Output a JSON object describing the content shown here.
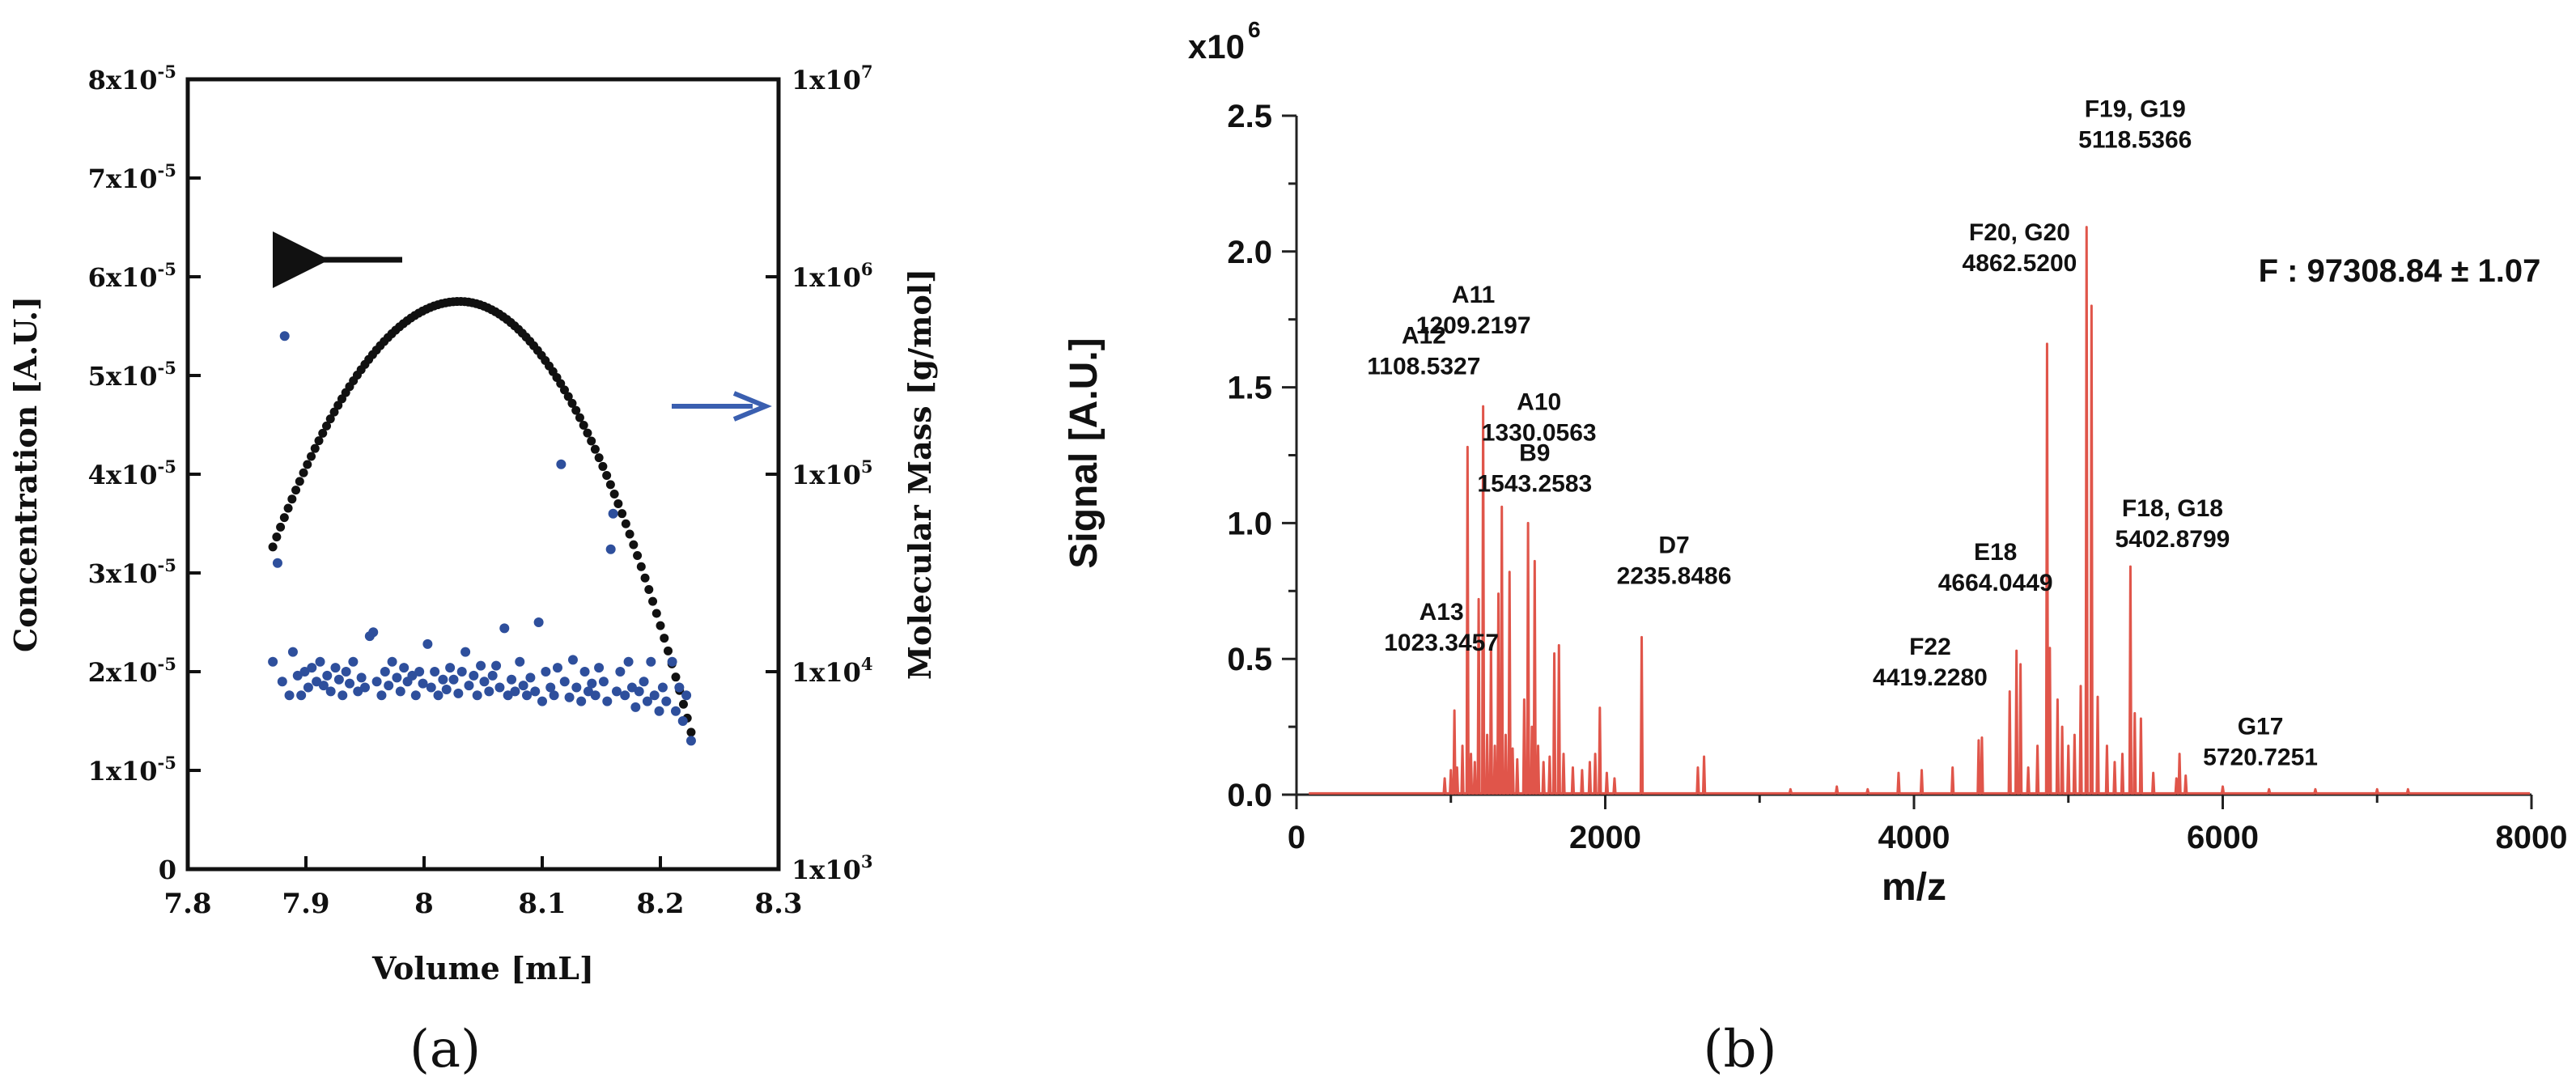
{
  "chart_data": [
    {
      "panel": "(a)",
      "type": "scatter",
      "xlabel": "Volume [mL]",
      "ylabel": "Concentration [A.U.]",
      "y2label": "Molecular Mass [g/mol]",
      "xlim": [
        7.8,
        8.3
      ],
      "ylim": [
        0,
        8e-05
      ],
      "y2lim_log10": [
        3,
        7
      ],
      "x_ticks": [
        "7.8",
        "7.9",
        "8",
        "8.1",
        "8.2",
        "8.3"
      ],
      "y_ticks": [
        "0",
        "1x10-5",
        "2x10-5",
        "3x10-5",
        "4x10-5",
        "5x10-5",
        "6x10-5",
        "7x10-5",
        "8x10-5"
      ],
      "y2_ticks": [
        "1x103",
        "1x104",
        "1x105",
        "1x106",
        "1x107"
      ],
      "colors": {
        "concentration": "#111111",
        "mass": "#2e4f9c",
        "arrow_blue": "#3a5fb0"
      },
      "concentration_series": {
        "name": "Concentration",
        "x_start": 7.872,
        "x_end": 8.226,
        "n_points": 110,
        "peak_x": 8.03,
        "peak_y": 5.75e-05,
        "left_curvature": 0.000996,
        "right_curvature": 0.001136
      },
      "mass_series": {
        "name": "Molecular Mass",
        "points": [
          [
            7.872,
            4.05
          ],
          [
            7.876,
            4.55
          ],
          [
            7.88,
            3.95
          ],
          [
            7.882,
            5.7
          ],
          [
            7.886,
            3.88
          ],
          [
            7.889,
            4.1
          ],
          [
            7.893,
            3.98
          ],
          [
            7.896,
            3.88
          ],
          [
            7.899,
            4.0
          ],
          [
            7.902,
            3.92
          ],
          [
            7.905,
            4.02
          ],
          [
            7.909,
            3.95
          ],
          [
            7.912,
            4.05
          ],
          [
            7.915,
            3.93
          ],
          [
            7.918,
            3.98
          ],
          [
            7.921,
            3.9
          ],
          [
            7.925,
            4.02
          ],
          [
            7.928,
            3.96
          ],
          [
            7.931,
            3.88
          ],
          [
            7.934,
            4.0
          ],
          [
            7.937,
            3.94
          ],
          [
            7.94,
            4.05
          ],
          [
            7.944,
            3.9
          ],
          [
            7.947,
            3.97
          ],
          [
            7.95,
            3.92
          ],
          [
            7.954,
            4.18
          ],
          [
            7.957,
            4.2
          ],
          [
            7.96,
            3.95
          ],
          [
            7.964,
            3.88
          ],
          [
            7.967,
            4.0
          ],
          [
            7.97,
            3.93
          ],
          [
            7.973,
            4.05
          ],
          [
            7.977,
            3.97
          ],
          [
            7.98,
            3.9
          ],
          [
            7.983,
            4.02
          ],
          [
            7.986,
            3.95
          ],
          [
            7.99,
            3.98
          ],
          [
            7.993,
            3.88
          ],
          [
            7.996,
            4.0
          ],
          [
            7.999,
            3.94
          ],
          [
            8.003,
            4.14
          ],
          [
            8.006,
            3.92
          ],
          [
            8.009,
            4.0
          ],
          [
            8.012,
            3.88
          ],
          [
            8.016,
            3.96
          ],
          [
            8.019,
            3.91
          ],
          [
            8.022,
            4.02
          ],
          [
            8.025,
            3.96
          ],
          [
            8.029,
            3.89
          ],
          [
            8.032,
            4.0
          ],
          [
            8.035,
            4.1
          ],
          [
            8.038,
            3.93
          ],
          [
            8.042,
            3.98
          ],
          [
            8.045,
            3.88
          ],
          [
            8.048,
            4.03
          ],
          [
            8.051,
            3.95
          ],
          [
            8.055,
            3.9
          ],
          [
            8.058,
            3.98
          ],
          [
            8.061,
            4.03
          ],
          [
            8.064,
            3.92
          ],
          [
            8.068,
            4.22
          ],
          [
            8.071,
            3.88
          ],
          [
            8.074,
            3.96
          ],
          [
            8.077,
            3.9
          ],
          [
            8.081,
            4.05
          ],
          [
            8.084,
            3.93
          ],
          [
            8.087,
            3.88
          ],
          [
            8.09,
            3.97
          ],
          [
            8.094,
            3.9
          ],
          [
            8.097,
            4.25
          ],
          [
            8.1,
            3.85
          ],
          [
            8.103,
            4.0
          ],
          [
            8.107,
            3.92
          ],
          [
            8.11,
            3.88
          ],
          [
            8.113,
            4.02
          ],
          [
            8.116,
            5.05
          ],
          [
            8.119,
            3.95
          ],
          [
            8.123,
            3.87
          ],
          [
            8.126,
            4.06
          ],
          [
            8.129,
            3.92
          ],
          [
            8.133,
            3.85
          ],
          [
            8.136,
            4.0
          ],
          [
            8.139,
            3.9
          ],
          [
            8.142,
            3.94
          ],
          [
            8.145,
            3.88
          ],
          [
            8.148,
            4.02
          ],
          [
            8.152,
            3.95
          ],
          [
            8.155,
            3.85
          ],
          [
            8.158,
            4.62
          ],
          [
            8.16,
            4.8
          ],
          [
            8.163,
            3.9
          ],
          [
            8.166,
            4.0
          ],
          [
            8.17,
            3.88
          ],
          [
            8.173,
            4.05
          ],
          [
            8.176,
            3.92
          ],
          [
            8.179,
            3.82
          ],
          [
            8.182,
            3.9
          ],
          [
            8.186,
            3.95
          ],
          [
            8.189,
            3.85
          ],
          [
            8.192,
            4.05
          ],
          [
            8.195,
            3.88
          ],
          [
            8.199,
            3.8
          ],
          [
            8.202,
            3.92
          ],
          [
            8.205,
            3.85
          ],
          [
            8.21,
            4.05
          ],
          [
            8.213,
            3.8
          ],
          [
            8.216,
            3.92
          ],
          [
            8.219,
            3.75
          ],
          [
            8.222,
            3.88
          ],
          [
            8.226,
            3.65
          ]
        ],
        "units": "y as log10 of mass in g/mol"
      }
    },
    {
      "panel": "(b)",
      "type": "line",
      "title_multiplier": "x10",
      "title_exponent": "6",
      "xlabel": "m/z",
      "ylabel": "Signal [A.U.]",
      "xlim": [
        0,
        8000
      ],
      "ylim": [
        0,
        2.5
      ],
      "x_ticks": [
        "0",
        "2000",
        "4000",
        "6000",
        "8000"
      ],
      "y_ticks": [
        "0.0",
        "0.5",
        "1.0",
        "1.5",
        "2.0",
        "2.5"
      ],
      "color": "#e0554a",
      "peaks": [
        [
          960,
          0.06
        ],
        [
          1000,
          0.09
        ],
        [
          1023,
          0.31
        ],
        [
          1040,
          0.1
        ],
        [
          1075,
          0.18
        ],
        [
          1108,
          1.28
        ],
        [
          1130,
          0.15
        ],
        [
          1155,
          0.12
        ],
        [
          1180,
          0.72
        ],
        [
          1209,
          1.43
        ],
        [
          1235,
          0.22
        ],
        [
          1260,
          0.55
        ],
        [
          1285,
          0.18
        ],
        [
          1308,
          0.74
        ],
        [
          1330,
          1.06
        ],
        [
          1355,
          0.22
        ],
        [
          1380,
          0.82
        ],
        [
          1400,
          0.17
        ],
        [
          1430,
          0.13
        ],
        [
          1475,
          0.35
        ],
        [
          1500,
          1.0
        ],
        [
          1525,
          0.25
        ],
        [
          1543,
          0.86
        ],
        [
          1565,
          0.18
        ],
        [
          1600,
          0.12
        ],
        [
          1640,
          0.14
        ],
        [
          1670,
          0.52
        ],
        [
          1700,
          0.55
        ],
        [
          1730,
          0.15
        ],
        [
          1790,
          0.1
        ],
        [
          1850,
          0.09
        ],
        [
          1900,
          0.12
        ],
        [
          1935,
          0.15
        ],
        [
          1965,
          0.32
        ],
        [
          2010,
          0.08
        ],
        [
          2060,
          0.06
        ],
        [
          2236,
          0.58
        ],
        [
          2600,
          0.1
        ],
        [
          2640,
          0.14
        ],
        [
          3200,
          0.02
        ],
        [
          3500,
          0.03
        ],
        [
          3700,
          0.02
        ],
        [
          3900,
          0.08
        ],
        [
          4050,
          0.09
        ],
        [
          4250,
          0.1
        ],
        [
          4419,
          0.2
        ],
        [
          4440,
          0.21
        ],
        [
          4620,
          0.38
        ],
        [
          4664,
          0.53
        ],
        [
          4690,
          0.48
        ],
        [
          4740,
          0.1
        ],
        [
          4800,
          0.18
        ],
        [
          4862,
          1.66
        ],
        [
          4880,
          0.54
        ],
        [
          4930,
          0.35
        ],
        [
          4960,
          0.25
        ],
        [
          5000,
          0.18
        ],
        [
          5040,
          0.22
        ],
        [
          5080,
          0.4
        ],
        [
          5118,
          2.09
        ],
        [
          5150,
          1.8
        ],
        [
          5190,
          0.36
        ],
        [
          5250,
          0.18
        ],
        [
          5300,
          0.12
        ],
        [
          5350,
          0.15
        ],
        [
          5402,
          0.84
        ],
        [
          5430,
          0.3
        ],
        [
          5470,
          0.28
        ],
        [
          5550,
          0.08
        ],
        [
          5700,
          0.06
        ],
        [
          5720,
          0.15
        ],
        [
          5760,
          0.07
        ],
        [
          6000,
          0.03
        ],
        [
          6300,
          0.02
        ],
        [
          6600,
          0.02
        ],
        [
          7000,
          0.02
        ],
        [
          7200,
          0.02
        ]
      ],
      "annotations": [
        {
          "line1": "A13",
          "line2": "1023.3457",
          "x": 1023,
          "y": 0.31
        },
        {
          "line1": "A12",
          "line2": "1108.5327",
          "x": 1108,
          "y": 1.28
        },
        {
          "line1": "A11",
          "line2": "1209.2197",
          "x": 1209,
          "y": 1.43
        },
        {
          "line1": "A10",
          "line2": "1330.0563",
          "x": 1330,
          "y": 1.06
        },
        {
          "line1": "B9",
          "line2": "1543.2583",
          "x": 1543,
          "y": 0.86
        },
        {
          "line1": "D7",
          "line2": "2235.8486",
          "x": 2236,
          "y": 0.58
        },
        {
          "line1": "F22",
          "line2": "4419.2280",
          "x": 4419,
          "y": 0.2
        },
        {
          "line1": "E18",
          "line2": "4664.0449",
          "x": 4664,
          "y": 0.53
        },
        {
          "line1": "F20, G20",
          "line2": "4862.5200",
          "x": 4862,
          "y": 1.66
        },
        {
          "line1": "F19, G19",
          "line2": "5118.5366",
          "x": 5118,
          "y": 2.09
        },
        {
          "line1": "F18, G18",
          "line2": "5402.8799",
          "x": 5402,
          "y": 0.84
        },
        {
          "line1": "G17",
          "line2": "5720.7251",
          "x": 5720,
          "y": 0.15
        }
      ],
      "mass_label": "F : 97308.84 ± 1.07"
    }
  ],
  "panel_labels": {
    "a": "(a)",
    "b": "(b)"
  }
}
